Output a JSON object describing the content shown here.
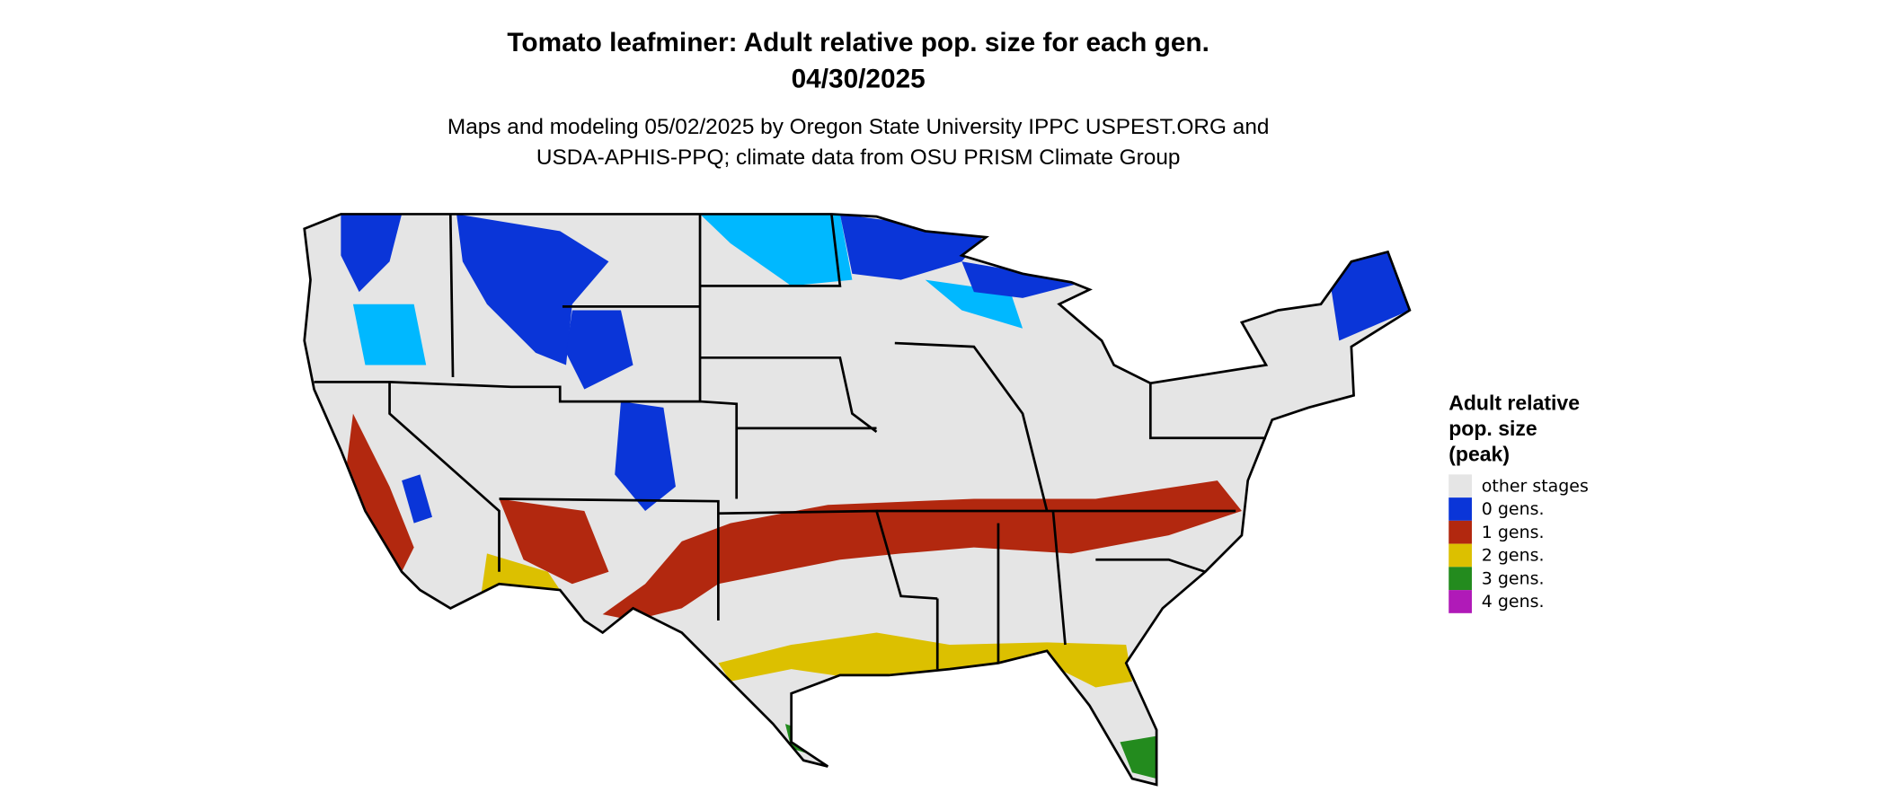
{
  "title": [
    "Tomato leafminer: Adult relative pop. size for each gen.",
    "04/30/2025"
  ],
  "subtitle": [
    "Maps and modeling 05/02/2025 by Oregon State University IPPC USPEST.ORG and",
    "USDA-APHIS-PPQ; climate data from OSU PRISM Climate Group"
  ],
  "legend": {
    "title": [
      "Adult relative",
      "pop. size",
      "(peak)"
    ],
    "items": [
      {
        "label": "other stages",
        "color": "#e5e5e5"
      },
      {
        "label": "0 gens.",
        "color": "#0a35d8"
      },
      {
        "label": "1 gens.",
        "color": "#b2280f"
      },
      {
        "label": "2 gens.",
        "color": "#dcc000"
      },
      {
        "label": "3 gens.",
        "color": "#238b1e"
      },
      {
        "label": "4 gens.",
        "color": "#b01ab8"
      }
    ]
  }
}
